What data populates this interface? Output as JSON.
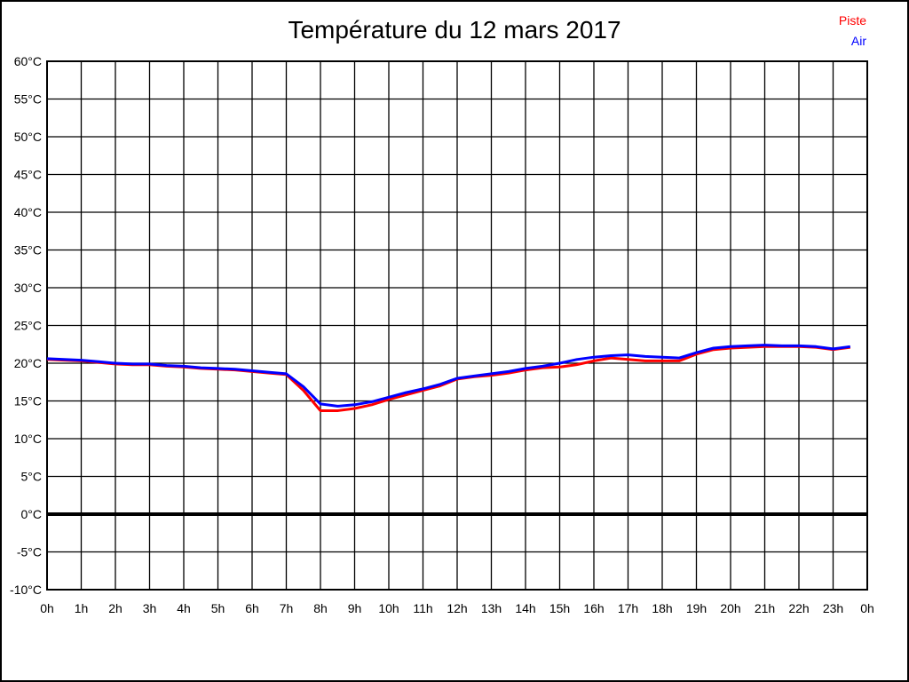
{
  "page": {
    "title": "Température du 12 mars 2017",
    "background_color": "#ffffff",
    "border_color": "#000000"
  },
  "legend": {
    "position": "top-right",
    "items": [
      {
        "label": "Piste",
        "color": "#ff0000"
      },
      {
        "label": "Air",
        "color": "#0000ff"
      }
    ]
  },
  "chart_data": {
    "type": "line",
    "title": "Température du 12 mars 2017",
    "xlabel": "",
    "ylabel": "",
    "x_unit": "h",
    "y_unit": "°C",
    "xlim": [
      0,
      24
    ],
    "ylim": [
      -10,
      60
    ],
    "x_tick_step": 1,
    "y_tick_step": 5,
    "grid": true,
    "grid_color": "#000000",
    "zero_line_bold": true,
    "legend_position": "top-right",
    "x_tick_labels": [
      "0h",
      "1h",
      "2h",
      "3h",
      "4h",
      "5h",
      "6h",
      "7h",
      "8h",
      "9h",
      "10h",
      "11h",
      "12h",
      "13h",
      "14h",
      "15h",
      "16h",
      "17h",
      "18h",
      "19h",
      "20h",
      "21h",
      "22h",
      "23h",
      "0h"
    ],
    "y_tick_labels": [
      "60°C",
      "55°C",
      "50°C",
      "45°C",
      "40°C",
      "35°C",
      "30°C",
      "25°C",
      "20°C",
      "15°C",
      "10°C",
      "5°C",
      "0°C",
      "-5°C",
      "-10°C"
    ],
    "x": [
      0,
      0.5,
      1,
      1.5,
      2,
      2.5,
      3,
      3.5,
      4,
      4.5,
      5,
      5.5,
      6,
      6.5,
      7,
      7.5,
      8,
      8.5,
      9,
      9.5,
      10,
      10.5,
      11,
      11.5,
      12,
      12.5,
      13,
      13.5,
      14,
      14.5,
      15,
      15.5,
      16,
      16.5,
      17,
      17.5,
      18,
      18.5,
      19,
      19.5,
      20,
      20.5,
      21,
      21.5,
      22,
      22.5,
      23,
      23.5
    ],
    "series": [
      {
        "name": "Piste",
        "color": "#ff0000",
        "values": [
          20.5,
          20.4,
          20.3,
          20.1,
          19.9,
          19.8,
          19.8,
          19.6,
          19.5,
          19.3,
          19.2,
          19.1,
          18.9,
          18.7,
          18.5,
          16.4,
          13.7,
          13.7,
          14.0,
          14.5,
          15.2,
          15.8,
          16.4,
          17.0,
          17.9,
          18.2,
          18.4,
          18.7,
          19.1,
          19.4,
          19.5,
          19.8,
          20.3,
          20.7,
          20.5,
          20.3,
          20.3,
          20.3,
          21.2,
          21.8,
          22.0,
          22.1,
          22.2,
          22.2,
          22.2,
          22.1,
          21.8,
          22.1
        ]
      },
      {
        "name": "Air",
        "color": "#0000ff",
        "values": [
          20.6,
          20.5,
          20.4,
          20.2,
          20.0,
          19.9,
          19.9,
          19.7,
          19.6,
          19.4,
          19.3,
          19.2,
          19.0,
          18.8,
          18.6,
          16.9,
          14.6,
          14.3,
          14.5,
          14.9,
          15.5,
          16.1,
          16.6,
          17.2,
          18.0,
          18.3,
          18.6,
          18.9,
          19.3,
          19.6,
          20.0,
          20.5,
          20.8,
          21.0,
          21.1,
          20.9,
          20.8,
          20.7,
          21.4,
          22.0,
          22.2,
          22.3,
          22.4,
          22.3,
          22.3,
          22.2,
          21.9,
          22.2
        ]
      }
    ]
  }
}
